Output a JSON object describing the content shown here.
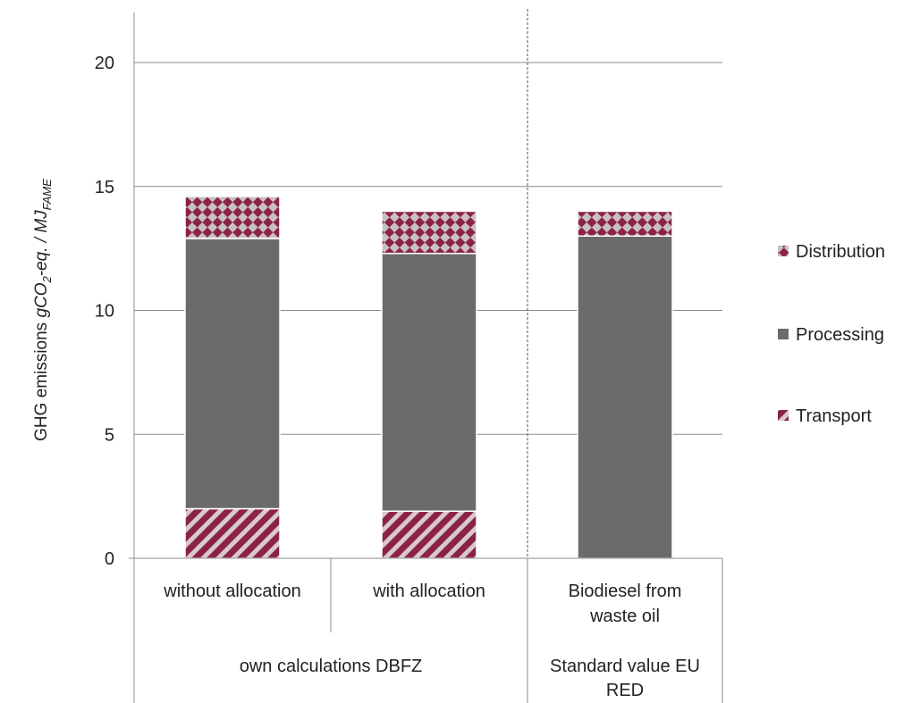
{
  "chart_data": {
    "type": "bar",
    "stacked": true,
    "categories": [
      "without allocation",
      "with allocation",
      "Biodiesel from waste oil"
    ],
    "category_lines": [
      [
        "without allocation"
      ],
      [
        "with allocation"
      ],
      [
        "Biodiesel from",
        "waste oil"
      ]
    ],
    "groups": [
      {
        "lines": [
          "own calculations DBFZ"
        ],
        "span": [
          0,
          1
        ]
      },
      {
        "lines": [
          "Standard value EU",
          "RED"
        ],
        "span": [
          2,
          2
        ]
      }
    ],
    "series": [
      {
        "name": "Transport",
        "values": [
          2.0,
          1.9,
          0.0
        ],
        "color": "#8b2346",
        "pattern": "diagonal-stripes"
      },
      {
        "name": "Processing",
        "values": [
          10.9,
          10.4,
          13.0
        ],
        "color": "#6b6b6b",
        "pattern": "solid"
      },
      {
        "name": "Distribution",
        "values": [
          1.7,
          1.7,
          1.0
        ],
        "color": "#8b2346",
        "pattern": "diamond-checker"
      }
    ],
    "legend_order": [
      "Distribution",
      "Processing",
      "Transport"
    ],
    "ylabel": {
      "prefix": "GHG emissions ",
      "italic_main": "gCO",
      "sub1": "2",
      "mid": "-eq. / MJ",
      "sub2": "FAME"
    },
    "ylim": [
      0,
      22
    ],
    "yticks": [
      0,
      5,
      10,
      15,
      20
    ],
    "grid": true,
    "legend_position": "right",
    "separator_after_category": 1
  }
}
